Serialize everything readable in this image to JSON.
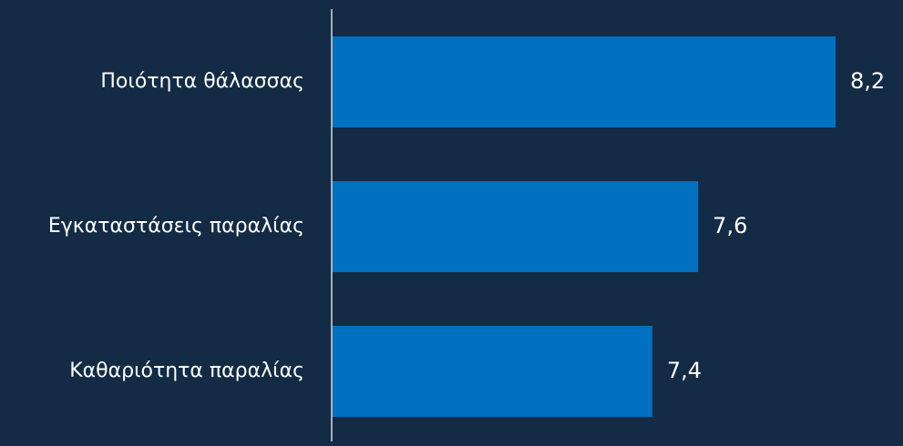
{
  "chart_data": {
    "type": "bar",
    "orientation": "horizontal",
    "categories": [
      "Ποιότητα θάλασσας",
      "Εγκαταστάσεις παραλίας",
      "Καθαριότητα παραλίας"
    ],
    "values": [
      8.2,
      7.6,
      7.4
    ],
    "value_labels": [
      "8,2",
      "7,6",
      "7,4"
    ],
    "title": "",
    "xlabel": "",
    "ylabel": "",
    "xlim": [
      6.0,
      8.2
    ],
    "grid": false,
    "legend": "none"
  },
  "colors": {
    "background": "#132b44",
    "bar": "#0070c0",
    "axis": "#d9d9d9",
    "text": "#ffffff"
  }
}
